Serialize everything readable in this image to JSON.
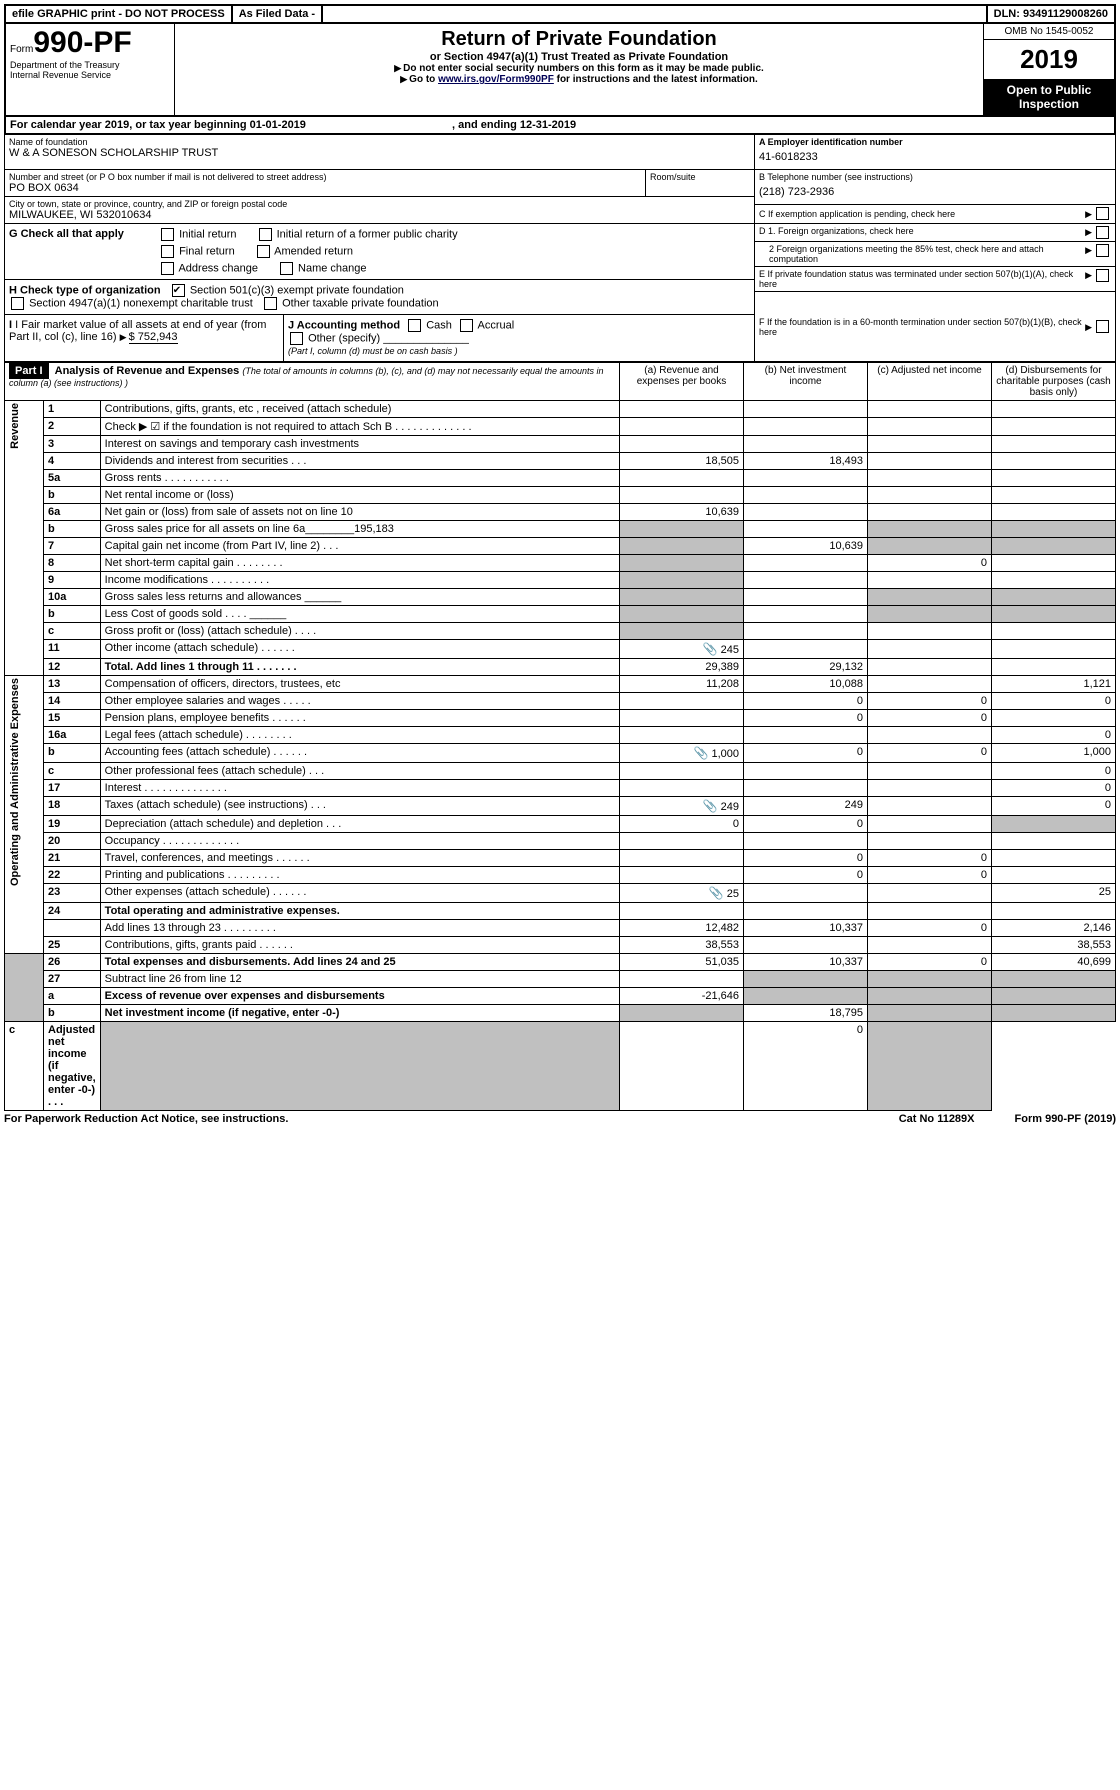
{
  "header": {
    "efile": "efile GRAPHIC print - DO NOT PROCESS",
    "asFiled": "As Filed Data -",
    "dln": "DLN: 93491129008260",
    "form": "990-PF",
    "formPrefix": "Form",
    "dept": "Department of the Treasury",
    "irs": "Internal Revenue Service",
    "title": "Return of Private Foundation",
    "subtitle": "or Section 4947(a)(1) Trust Treated as Private Foundation",
    "note1": "Do not enter social security numbers on this form as it may be made public.",
    "note2": "Go to ",
    "linkText": "www.irs.gov/Form990PF",
    "note2b": " for instructions and the latest information.",
    "omb": "OMB No 1545-0052",
    "year": "2019",
    "open": "Open to Public Inspection"
  },
  "cal": "For calendar year 2019, or tax year beginning 01-01-2019",
  "calEnd": ", and ending 12-31-2019",
  "entity": {
    "nameLabel": "Name of foundation",
    "name": "W & A SONESON SCHOLARSHIP TRUST",
    "addrLabel": "Number and street (or P O  box number if mail is not delivered to street address)",
    "roomLabel": "Room/suite",
    "addr": "PO BOX 0634",
    "cityLabel": "City or town, state or province, country, and ZIP or foreign postal code",
    "city": "MILWAUKEE, WI  532010634",
    "A_label": "A Employer identification number",
    "A": "41-6018233",
    "B_label": "B Telephone number (see instructions)",
    "B": "(218) 723-2936",
    "C": "C If exemption application is pending, check here",
    "D1": "D 1. Foreign organizations, check here",
    "D2": "2  Foreign organizations meeting the 85% test, check here and attach computation",
    "E": "E  If private foundation status was terminated under section 507(b)(1)(A), check here",
    "F": "F  If the foundation is in a 60-month termination under section 507(b)(1)(B), check here"
  },
  "G": {
    "label": "G Check all that apply",
    "o1": "Initial return",
    "o2": "Initial return of a former public charity",
    "o3": "Final return",
    "o4": "Amended return",
    "o5": "Address change",
    "o6": "Name change"
  },
  "H": {
    "label": "H Check type of organization",
    "o1": "Section 501(c)(3) exempt private foundation",
    "o2": "Section 4947(a)(1) nonexempt charitable trust",
    "o3": "Other taxable private foundation"
  },
  "I": {
    "label": "I Fair market value of all assets at end of year (from Part II, col  (c), line 16)",
    "val": "$  752,943"
  },
  "J": {
    "label": "J Accounting method",
    "o1": "Cash",
    "o2": "Accrual",
    "o3": "Other (specify)",
    "note": "(Part I, column (d) must be on cash basis )"
  },
  "partI": {
    "hdr": "Part I",
    "title": "Analysis of Revenue and Expenses",
    "note": " (The total of amounts in columns (b), (c), and (d) may not necessarily equal the amounts in column (a) (see instructions) )",
    "col_a": "(a)  Revenue and expenses per books",
    "col_b": "(b)  Net investment income",
    "col_c": "(c)  Adjusted net income",
    "col_d": "(d)  Disbursements for charitable purposes (cash basis only)",
    "rev": "Revenue",
    "opex": "Operating and Administrative Expenses"
  },
  "rows": [
    {
      "n": "1",
      "t": "Contributions, gifts, grants, etc , received (attach schedule)",
      "a": "",
      "b": "",
      "c": "",
      "d": ""
    },
    {
      "n": "2",
      "t": "Check ▶ ☑ if the foundation is not required to attach Sch  B  .  .  .  .  .  .  .  .  .  .  .  .  .",
      "a": "",
      "b": "",
      "c": "",
      "d": ""
    },
    {
      "n": "3",
      "t": "Interest on savings and temporary cash investments",
      "a": "",
      "b": "",
      "c": "",
      "d": ""
    },
    {
      "n": "4",
      "t": "Dividends and interest from securities  .  .  .",
      "a": "18,505",
      "b": "18,493",
      "c": "",
      "d": ""
    },
    {
      "n": "5a",
      "t": "Gross rents  .  .  .  .  .  .  .  .  .  .  .",
      "a": "",
      "b": "",
      "c": "",
      "d": ""
    },
    {
      "n": "b",
      "t": "Net rental income or (loss)",
      "a": "",
      "b": "",
      "c": "",
      "d": ""
    },
    {
      "n": "6a",
      "t": "Net gain or (loss) from sale of assets not on line 10",
      "a": "10,639",
      "b": "",
      "c": "",
      "d": ""
    },
    {
      "n": "b",
      "t": "Gross sales price for all assets on line 6a________195,183",
      "a": "",
      "b": "",
      "c": "",
      "d": "",
      "greyA": true,
      "greyCD": true
    },
    {
      "n": "7",
      "t": "Capital gain net income (from Part IV, line 2)  .  .  .",
      "a": "",
      "b": "10,639",
      "c": "",
      "d": "",
      "greyA": true,
      "greyCD": true
    },
    {
      "n": "8",
      "t": "Net short-term capital gain  .  .  .  .  .  .  .  .",
      "a": "",
      "b": "",
      "c": "0",
      "d": "",
      "greyA": true
    },
    {
      "n": "9",
      "t": "Income modifications  .  .  .  .  .  .  .  .  .  .",
      "a": "",
      "b": "",
      "c": "",
      "d": "",
      "greyA": true
    },
    {
      "n": "10a",
      "t": "Gross sales less returns and allowances ______",
      "a": "",
      "b": "",
      "c": "",
      "d": "",
      "greyA": true,
      "greyCD": true
    },
    {
      "n": "b",
      "t": "Less  Cost of goods sold  .  .  .  . ______",
      "a": "",
      "b": "",
      "c": "",
      "d": "",
      "greyA": true,
      "greyCD": true
    },
    {
      "n": "c",
      "t": "Gross profit or (loss) (attach schedule)  .  .  .  .",
      "a": "",
      "b": "",
      "c": "",
      "d": "",
      "greyA": true
    },
    {
      "n": "11",
      "t": "Other income (attach schedule)  .  .  .  .  .  .",
      "a": "245",
      "b": "",
      "c": "",
      "d": "",
      "icon": true
    },
    {
      "n": "12",
      "t": "Total. Add lines 1 through 11  .  .  .  .  .  .  .",
      "a": "29,389",
      "b": "29,132",
      "c": "",
      "d": "",
      "bold": true
    },
    {
      "n": "13",
      "t": "Compensation of officers, directors, trustees, etc",
      "a": "11,208",
      "b": "10,088",
      "c": "",
      "d": "1,121"
    },
    {
      "n": "14",
      "t": "Other employee salaries and wages  .  .  .  .  .",
      "a": "",
      "b": "0",
      "c": "0",
      "d": "0"
    },
    {
      "n": "15",
      "t": "Pension plans, employee benefits  .  .  .  .  .  .",
      "a": "",
      "b": "0",
      "c": "0",
      "d": ""
    },
    {
      "n": "16a",
      "t": "Legal fees (attach schedule)  .  .  .  .  .  .  .  .",
      "a": "",
      "b": "",
      "c": "",
      "d": "0"
    },
    {
      "n": "b",
      "t": "Accounting fees (attach schedule)  .  .  .  .  .  .",
      "a": "1,000",
      "b": "0",
      "c": "0",
      "d": "1,000",
      "icon": true
    },
    {
      "n": "c",
      "t": "Other professional fees (attach schedule)  .  .  .",
      "a": "",
      "b": "",
      "c": "",
      "d": "0"
    },
    {
      "n": "17",
      "t": "Interest  .  .  .  .  .  .  .  .  .  .  .  .  .  .",
      "a": "",
      "b": "",
      "c": "",
      "d": "0"
    },
    {
      "n": "18",
      "t": "Taxes (attach schedule) (see instructions)  .  .  .",
      "a": "249",
      "b": "249",
      "c": "",
      "d": "0",
      "icon": true
    },
    {
      "n": "19",
      "t": "Depreciation (attach schedule) and depletion  .  .  .",
      "a": "0",
      "b": "0",
      "c": "",
      "d": "",
      "greyD": true
    },
    {
      "n": "20",
      "t": "Occupancy  .  .  .  .  .  .  .  .  .  .  .  .  .",
      "a": "",
      "b": "",
      "c": "",
      "d": ""
    },
    {
      "n": "21",
      "t": "Travel, conferences, and meetings  .  .  .  .  .  .",
      "a": "",
      "b": "0",
      "c": "0",
      "d": ""
    },
    {
      "n": "22",
      "t": "Printing and publications  .  .  .  .  .  .  .  .  .",
      "a": "",
      "b": "0",
      "c": "0",
      "d": ""
    },
    {
      "n": "23",
      "t": "Other expenses (attach schedule)  .  .  .  .  .  .",
      "a": "25",
      "b": "",
      "c": "",
      "d": "25",
      "icon": true
    },
    {
      "n": "24",
      "t": "Total operating and administrative expenses.",
      "bold": true,
      "noVals": true
    },
    {
      "n": "",
      "t": "Add lines 13 through 23  .  .  .  .  .  .  .  .  .",
      "a": "12,482",
      "b": "10,337",
      "c": "0",
      "d": "2,146"
    },
    {
      "n": "25",
      "t": "Contributions, gifts, grants paid  .  .  .  .  .  .",
      "a": "38,553",
      "b": "",
      "c": "",
      "d": "38,553"
    },
    {
      "n": "26",
      "t": "Total expenses and disbursements. Add lines 24 and 25",
      "a": "51,035",
      "b": "10,337",
      "c": "0",
      "d": "40,699",
      "bold": true
    },
    {
      "n": "27",
      "t": "Subtract line 26 from line 12",
      "a": "",
      "b": "",
      "c": "",
      "d": "",
      "greyBCD": true
    },
    {
      "n": "a",
      "t": "Excess of revenue over expenses and disbursements",
      "a": "-21,646",
      "b": "",
      "c": "",
      "d": "",
      "bold": true,
      "greyBCD": true
    },
    {
      "n": "b",
      "t": "Net investment income (if negative, enter -0-)",
      "a": "",
      "b": "18,795",
      "c": "",
      "d": "",
      "bold": true,
      "greyA": true,
      "greyCD": true
    },
    {
      "n": "c",
      "t": "Adjusted net income (if negative, enter -0-)  .  .  .",
      "a": "",
      "b": "",
      "c": "0",
      "d": "",
      "bold": true,
      "greyA": true,
      "greyD": true
    }
  ],
  "footer": {
    "left": "For Paperwork Reduction Act Notice, see instructions.",
    "mid": "Cat  No  11289X",
    "right": "Form 990-PF (2019)"
  }
}
